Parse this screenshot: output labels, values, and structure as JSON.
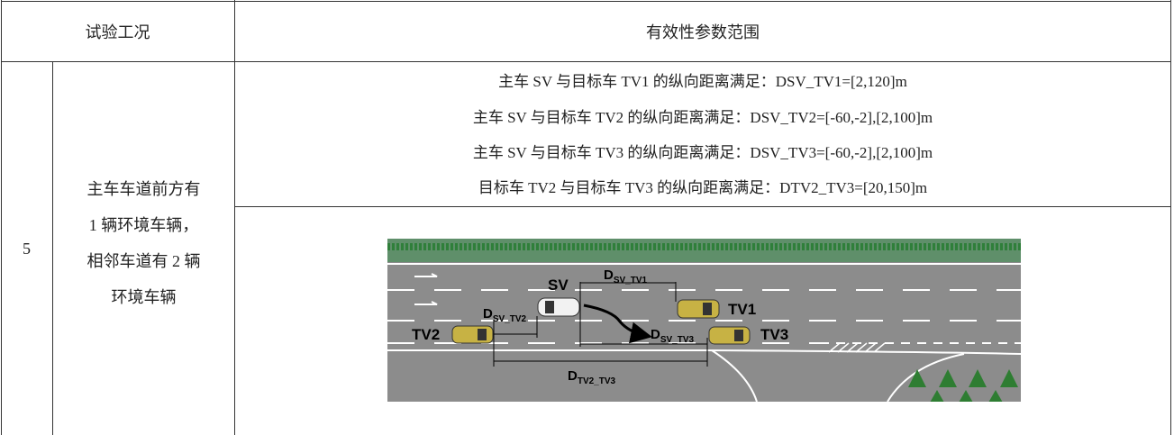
{
  "header": {
    "condition": "试验工况",
    "parameters": "有效性参数范围"
  },
  "rows": [
    {
      "id": "5",
      "condition": [
        "主车车道前方有",
        "1 辆环境车辆，",
        "相邻车道有 2 辆",
        "环境车辆"
      ],
      "parameters": [
        "主车 SV 与目标车 TV1 的纵向距离满足：DSV_TV1=[2,120]m",
        "主车 SV 与目标车 TV2 的纵向距离满足：DSV_TV2=[-60,-2],[2,100]m",
        "主车 SV 与目标车 TV3 的纵向距离满足：DSV_TV3=[-60,-2],[2,100]m",
        "目标车 TV2 与目标车 TV3 的纵向距离满足：DTV2_TV3=[20,150]m"
      ],
      "diagram": {
        "vehicles": {
          "sv": "SV",
          "tv1": "TV1",
          "tv2": "TV2",
          "tv3": "TV3"
        },
        "distances": {
          "sv_tv1": {
            "base": "D",
            "sub": "SV_TV1"
          },
          "sv_tv2": {
            "base": "D",
            "sub": "SV_TV2"
          },
          "sv_tv3": {
            "base": "D",
            "sub": "SV_TV3"
          },
          "tv2_tv3": {
            "base": "D",
            "sub": "TV2_TV3"
          }
        }
      }
    }
  ]
}
